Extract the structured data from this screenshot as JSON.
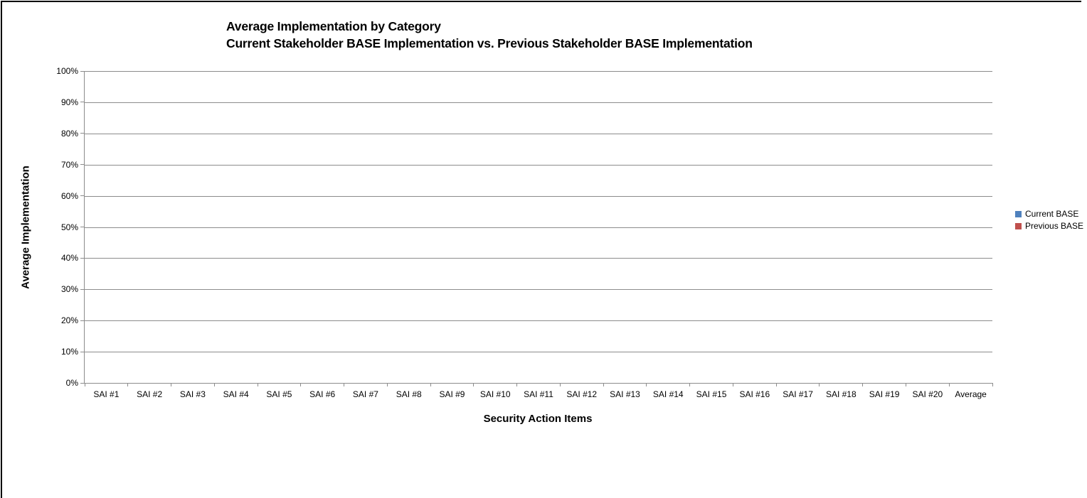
{
  "chart": {
    "title_line1": "Average Implementation by Category",
    "title_line2": "Current Stakeholder BASE Implementation vs. Previous Stakeholder BASE Implementation",
    "y_axis_title": "Average Implementation",
    "x_axis_title": "Security Action Items"
  },
  "chart_data": {
    "type": "bar",
    "title": "Average Implementation by Category",
    "subtitle": "Current Stakeholder BASE Implementation vs. Previous Stakeholder BASE Implementation",
    "xlabel": "Security Action Items",
    "ylabel": "Average Implementation",
    "categories": [
      "SAI #1",
      "SAI #2",
      "SAI #3",
      "SAI #4",
      "SAI #5",
      "SAI #6",
      "SAI #7",
      "SAI #8",
      "SAI #9",
      "SAI #10",
      "SAI #11",
      "SAI #12",
      "SAI #13",
      "SAI #14",
      "SAI #15",
      "SAI #16",
      "SAI #17",
      "SAI #18",
      "SAI #19",
      "SAI #20",
      "Average"
    ],
    "series": [
      {
        "name": "Current BASE",
        "color": "#4F81BD",
        "values": [
          0,
          0,
          0,
          0,
          0,
          0,
          0,
          0,
          0,
          0,
          0,
          0,
          0,
          0,
          0,
          0,
          0,
          0,
          0,
          0,
          0
        ]
      },
      {
        "name": "Previous BASE",
        "color": "#C0504D",
        "values": [
          0,
          0,
          0,
          0,
          0,
          0,
          0,
          0,
          0,
          0,
          0,
          0,
          0,
          0,
          0,
          0,
          0,
          0,
          0,
          0,
          0
        ]
      }
    ],
    "y_ticks": [
      "100%",
      "90%",
      "80%",
      "70%",
      "60%",
      "50%",
      "40%",
      "30%",
      "20%",
      "10%",
      "0%"
    ],
    "ylim": [
      0,
      1
    ],
    "grid": true,
    "legend_position": "right"
  },
  "colors": {
    "gridline": "#8C8C8C",
    "axis": "#8C8C8C",
    "frame_border": "#000000",
    "current_base": "#4F81BD",
    "previous_base": "#C0504D"
  }
}
